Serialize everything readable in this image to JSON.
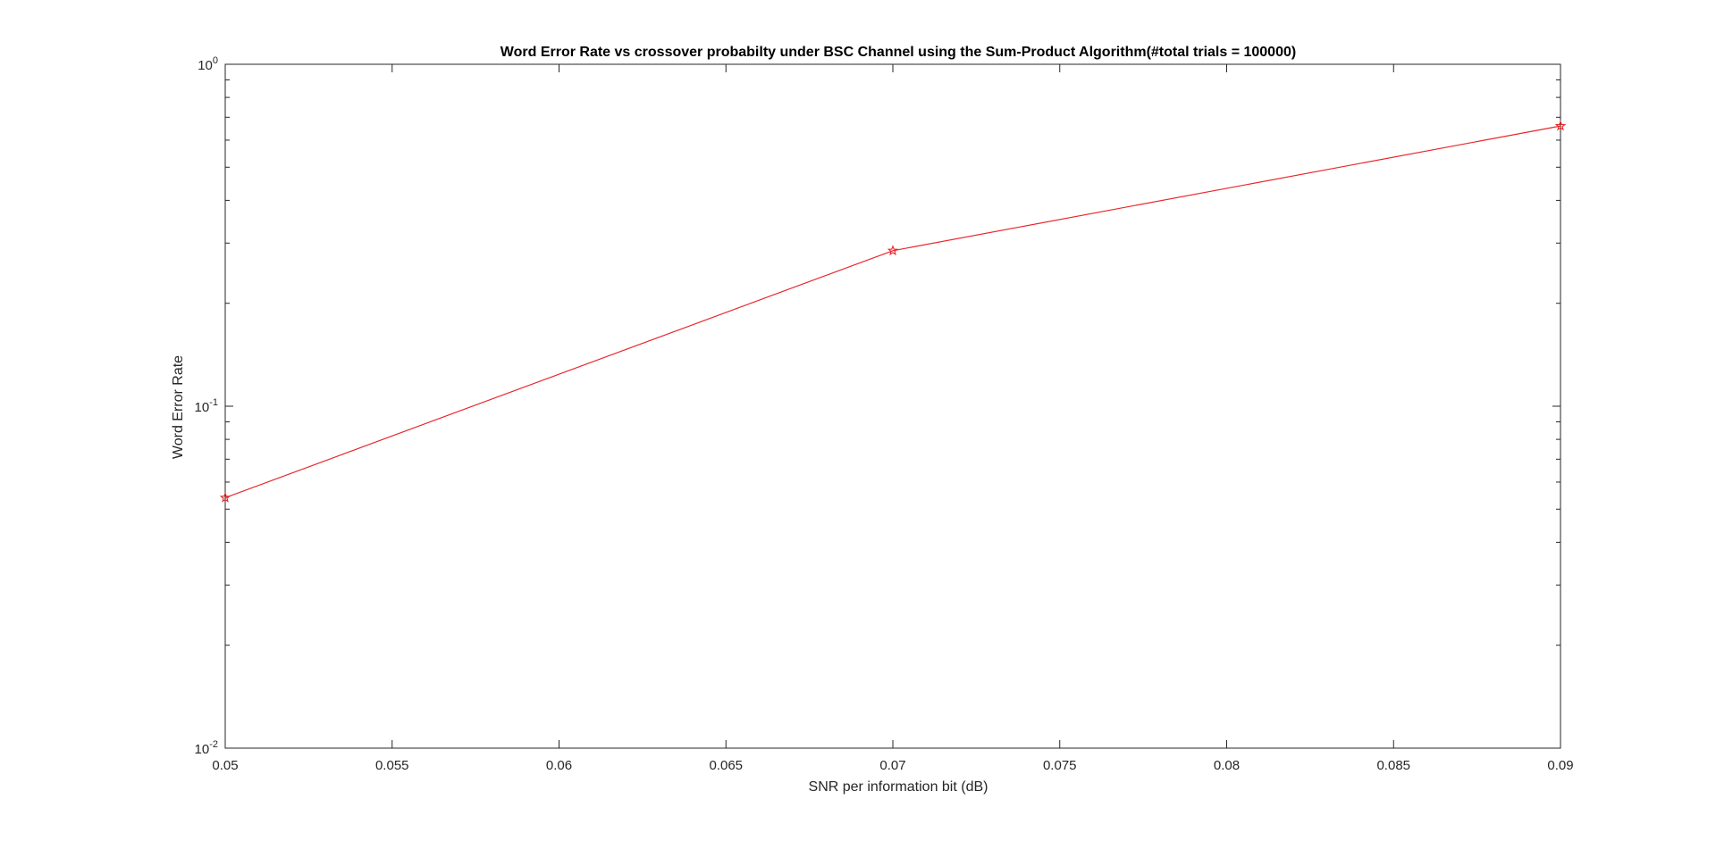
{
  "chart_data": {
    "type": "line",
    "title": "Word Error Rate vs crossover probabilty under BSC Channel using the Sum-Product Algorithm(#total trials = 100000)",
    "xlabel": "SNR per information bit (dB)",
    "ylabel": "Word Error Rate",
    "xlim": [
      0.05,
      0.09
    ],
    "ylim": [
      0.01,
      1
    ],
    "yscale": "log",
    "grid": false,
    "xticks": [
      {
        "value": 0.05,
        "label": "0.05"
      },
      {
        "value": 0.055,
        "label": "0.055"
      },
      {
        "value": 0.06,
        "label": "0.06"
      },
      {
        "value": 0.065,
        "label": "0.065"
      },
      {
        "value": 0.07,
        "label": "0.07"
      },
      {
        "value": 0.075,
        "label": "0.075"
      },
      {
        "value": 0.08,
        "label": "0.08"
      },
      {
        "value": 0.085,
        "label": "0.085"
      },
      {
        "value": 0.09,
        "label": "0.09"
      }
    ],
    "yticks": [
      {
        "value": 0.01,
        "base": "10",
        "exp": "-2"
      },
      {
        "value": 0.1,
        "base": "10",
        "exp": "-1"
      },
      {
        "value": 1,
        "base": "10",
        "exp": "0"
      }
    ],
    "series": [
      {
        "color": "#e8262b",
        "marker": "pentagram",
        "x": [
          0.05,
          0.07,
          0.09
        ],
        "y": [
          0.054,
          0.285,
          0.66
        ]
      }
    ]
  }
}
